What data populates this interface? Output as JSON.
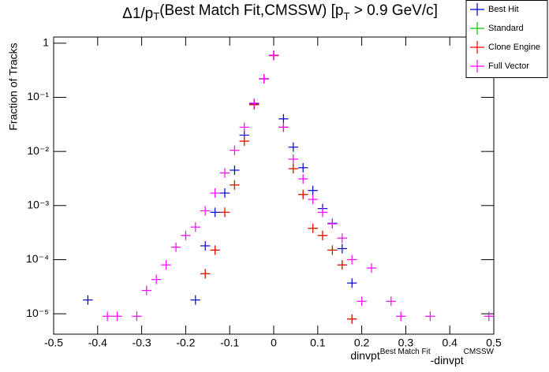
{
  "chart_data": {
    "type": "histogram",
    "title": [
      "Δ1/p",
      "T",
      "(Best Match Fit,CMSSW) [p",
      "T",
      " > 0.9 GeV/c]"
    ],
    "xlabel": [
      "dinvpt",
      "Best Match Fit",
      "-dinvpt",
      "CMSSW"
    ],
    "ylabel": "Fraction of Tracks",
    "ylog": true,
    "legend": "top-right",
    "bins": [
      -0.5,
      -0.4778,
      -0.4556,
      -0.4333,
      -0.4111,
      -0.3889,
      -0.3667,
      -0.3444,
      -0.3222,
      -0.3,
      -0.2778,
      -0.2556,
      -0.2333,
      -0.2111,
      -0.1889,
      -0.1667,
      -0.1444,
      -0.1222,
      -0.1,
      -0.0778,
      -0.0556,
      -0.0333,
      -0.0111,
      0.0111,
      0.0333,
      0.0556,
      0.0778,
      0.1,
      0.1222,
      0.1444,
      0.1667,
      0.1889,
      0.2111,
      0.2333,
      0.2556,
      0.2778,
      0.3,
      0.3222,
      0.3444,
      0.3667,
      0.3889,
      0.4111,
      0.4333,
      0.4556,
      0.4778,
      0.5
    ],
    "series": [
      {
        "name": "Best Hit",
        "color": "#0000cc",
        "values": [
          null,
          null,
          null,
          1.8e-05,
          null,
          null,
          null,
          null,
          null,
          null,
          null,
          null,
          null,
          null,
          1.8e-05,
          0.00018,
          0.00075,
          0.0017,
          0.0045,
          0.02,
          0.075,
          0.22,
          0.6,
          0.04,
          0.012,
          0.005,
          0.0019,
          0.00088,
          0.00047,
          0.00016,
          3.7e-05,
          null,
          null,
          null,
          null,
          null,
          null,
          null,
          null,
          null,
          null,
          null,
          null,
          null,
          null
        ]
      },
      {
        "name": "Standard",
        "color": "#00cc00",
        "values": [
          null,
          null,
          null,
          null,
          null,
          null,
          null,
          null,
          null,
          null,
          null,
          null,
          null,
          null,
          null,
          5.5e-05,
          0.00015,
          0.00075,
          0.0024,
          0.0155,
          0.073,
          0.22,
          0.59,
          0.028,
          0.0048,
          0.0016,
          0.00038,
          0.00028,
          0.00015,
          8e-05,
          8e-06,
          null,
          null,
          null,
          null,
          null,
          null,
          null,
          null,
          null,
          null,
          null,
          null,
          null,
          null
        ]
      },
      {
        "name": "Clone Engine",
        "color": "#ff0000",
        "values": [
          null,
          null,
          null,
          null,
          null,
          null,
          null,
          null,
          null,
          null,
          null,
          null,
          null,
          null,
          null,
          5.5e-05,
          0.00015,
          0.00075,
          0.0024,
          0.0155,
          0.073,
          0.22,
          0.59,
          0.028,
          0.0048,
          0.0016,
          0.00038,
          0.00028,
          0.00015,
          8e-05,
          8e-06,
          null,
          null,
          null,
          null,
          null,
          null,
          null,
          null,
          null,
          null,
          null,
          null,
          null,
          null
        ]
      },
      {
        "name": "Full Vector",
        "color": "#ff00ff",
        "values": [
          null,
          null,
          null,
          null,
          null,
          9e-06,
          9e-06,
          null,
          9e-06,
          2.7e-05,
          4.3e-05,
          8e-05,
          0.00017,
          0.00028,
          0.0004,
          0.0008,
          0.0017,
          0.004,
          0.0105,
          0.028,
          0.078,
          0.22,
          0.6,
          0.028,
          0.0072,
          0.0031,
          0.0013,
          0.00075,
          0.00046,
          0.00025,
          0.0001,
          1.7e-05,
          7e-05,
          null,
          1.7e-05,
          9e-06,
          null,
          null,
          9e-06,
          null,
          null,
          null,
          null,
          null,
          9e-06
        ]
      }
    ],
    "xlim": [
      -0.5,
      0.5
    ],
    "xticks": [
      -0.5,
      -0.4,
      -0.3,
      -0.2,
      -0.1,
      0,
      0.1,
      0.2,
      0.3,
      0.4,
      0.5
    ],
    "ylim": [
      4.2e-06,
      1.3
    ],
    "yticks": [
      {
        "value": 1e-05,
        "label": "10⁻⁵"
      },
      {
        "value": 0.0001,
        "label": "10⁻⁴"
      },
      {
        "value": 0.001,
        "label": "10⁻³"
      },
      {
        "value": 0.01,
        "label": "10⁻²"
      },
      {
        "value": 0.1,
        "label": "10⁻¹"
      },
      1
    ]
  }
}
